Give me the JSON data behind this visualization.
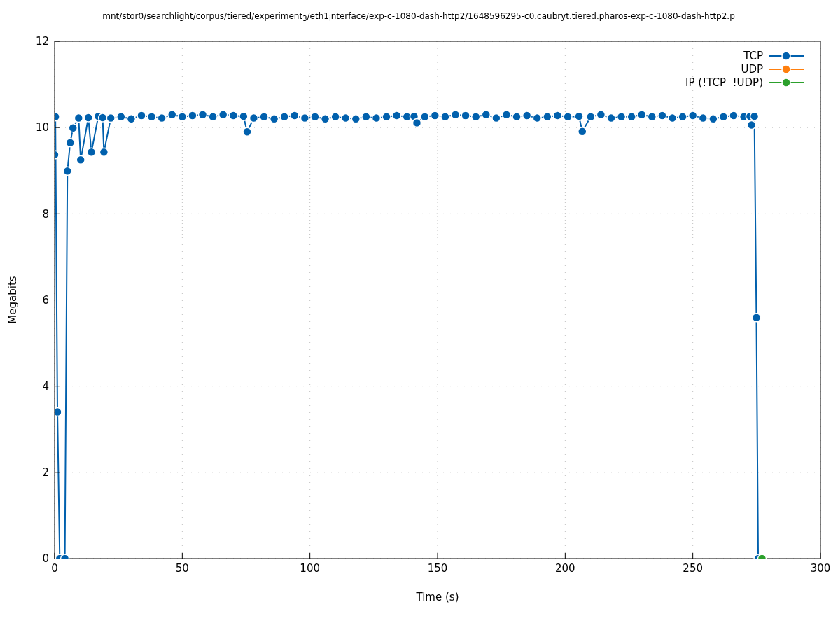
{
  "chart_data": {
    "type": "line",
    "title": "mnt/stor0/searchlight/corpus/tiered/experiment$_{3}$/eth1$_{i}$nterface/exp-c-1080-dash-http2/1648596295-c0.caubryt.tiered.pharos-exp-c-1080-dash-http2.p",
    "xlabel": "Time (s)",
    "ylabel": "Megabits",
    "series": [
      {
        "name": "TCP",
        "color": "#0060ad",
        "x": [
          0,
          0.3,
          1.1,
          2,
          4,
          5,
          6.1,
          7.2,
          9.4,
          10.2,
          13.2,
          14.4,
          17.1,
          18.8,
          19.3,
          22,
          26,
          30,
          34,
          38,
          42,
          46,
          50,
          54,
          58,
          62,
          66,
          70,
          74,
          75.4,
          78,
          82,
          86,
          90,
          94,
          98,
          102,
          106,
          110,
          114,
          118,
          122,
          126,
          130,
          134,
          138,
          140.8,
          141.9,
          145,
          149,
          153,
          157,
          161,
          165,
          169,
          173,
          177,
          181,
          185,
          189,
          193,
          197,
          201,
          205.4,
          206.7,
          210,
          214,
          218,
          222,
          226,
          230,
          234,
          238,
          242,
          246,
          250,
          254,
          258,
          262,
          266,
          270,
          272.4,
          273,
          274.1,
          274.9,
          275.6
        ],
        "values": [
          9.37,
          10.25,
          3.4,
          0,
          0,
          8.99,
          9.65,
          9.99,
          10.22,
          9.25,
          10.23,
          9.43,
          10.26,
          10.23,
          9.43,
          10.22,
          10.25,
          10.2,
          10.28,
          10.25,
          10.22,
          10.3,
          10.25,
          10.28,
          10.3,
          10.25,
          10.3,
          10.28,
          10.26,
          9.9,
          10.22,
          10.25,
          10.2,
          10.25,
          10.28,
          10.22,
          10.25,
          10.2,
          10.25,
          10.22,
          10.2,
          10.25,
          10.22,
          10.25,
          10.28,
          10.25,
          10.26,
          10.11,
          10.25,
          10.28,
          10.25,
          10.3,
          10.28,
          10.25,
          10.3,
          10.22,
          10.3,
          10.25,
          10.28,
          10.22,
          10.25,
          10.28,
          10.25,
          10.26,
          9.91,
          10.25,
          10.3,
          10.22,
          10.25,
          10.25,
          10.3,
          10.25,
          10.28,
          10.22,
          10.25,
          10.28,
          10.22,
          10.2,
          10.25,
          10.28,
          10.25,
          10.26,
          10.06,
          10.26,
          5.59,
          0
        ]
      },
      {
        "name": "UDP",
        "color": "#ff7f0e"
      },
      {
        "name": "IP (!TCP  !UDP)",
        "color": "#2ca02c",
        "x": [
          277.1
        ],
        "values": [
          0
        ]
      }
    ],
    "xlim": [
      0,
      300
    ],
    "xticks": [
      0,
      50,
      100,
      150,
      200,
      250,
      300
    ],
    "ylim": [
      0,
      12
    ],
    "yticks": [
      0,
      2,
      4,
      6,
      8,
      10,
      12
    ],
    "grid": true,
    "legend": "top right",
    "marker": "circle",
    "line_style": "solid"
  }
}
